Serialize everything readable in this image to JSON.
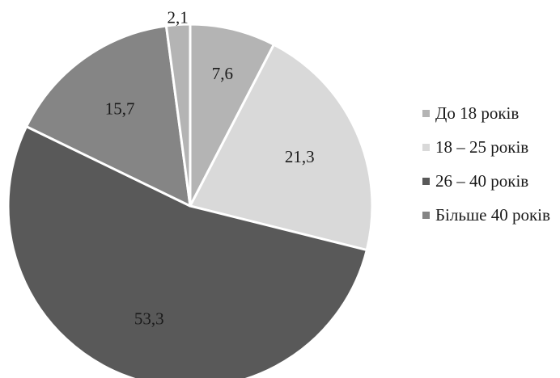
{
  "chart_data": {
    "type": "pie",
    "title": "",
    "categories": [
      "До 18 років",
      "18 – 25 років",
      "26 – 40 років",
      "Більше 40 років",
      ""
    ],
    "values": [
      7.6,
      21.3,
      53.3,
      15.7,
      2.1
    ],
    "value_labels": [
      "7,6",
      "21,3",
      "53,3",
      "15,7",
      "2,1"
    ],
    "colors": [
      "#b4b4b4",
      "#d9d9d9",
      "#595959",
      "#858585",
      "#b4b4b4"
    ],
    "start_angle": "12 o'clock",
    "direction": "clockwise",
    "legend_position": "right",
    "legend": [
      {
        "label": "До 18 років",
        "color": "#b4b4b4"
      },
      {
        "label": "18 – 25 років",
        "color": "#d9d9d9"
      },
      {
        "label": "26 – 40 років",
        "color": "#595959"
      },
      {
        "label": "Більше 40 років",
        "color": "#858585"
      }
    ]
  }
}
